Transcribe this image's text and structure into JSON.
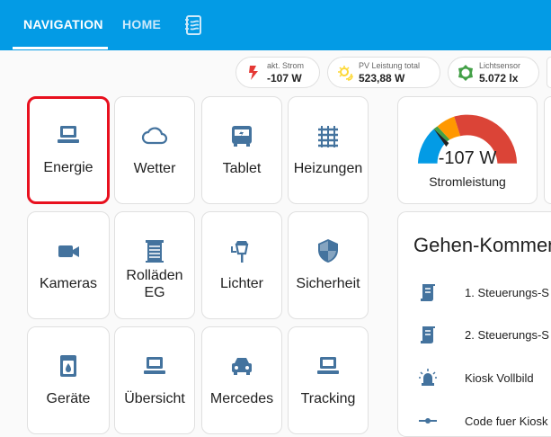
{
  "header": {
    "tabs": [
      {
        "label": "NAVIGATION",
        "active": true
      },
      {
        "label": "HOME",
        "active": false
      }
    ],
    "extra_tab_icon": "notebook-icon",
    "color": "#039be5"
  },
  "chips": [
    {
      "label": "akt. Strom",
      "value": "-107 W",
      "icon": "flash-icon",
      "color": "#e53935"
    },
    {
      "label": "PV Leistung total",
      "value": "523,88 W",
      "icon": "solar-power-icon",
      "color": "#fdd835"
    },
    {
      "label": "Lichtsensor",
      "value": "5.072 lx",
      "icon": "brightness-icon",
      "color": "#43a047"
    }
  ],
  "buttons": [
    {
      "label": "Energie",
      "icon": "laptop-icon",
      "selected": true
    },
    {
      "label": "Wetter",
      "icon": "cloud-icon"
    },
    {
      "label": "Tablet",
      "icon": "tablet-bus-icon"
    },
    {
      "label": "Heizungen",
      "icon": "radiator-icon"
    },
    {
      "label": "Kameras",
      "icon": "video-camera-icon"
    },
    {
      "label": "Rolläden EG",
      "icon": "window-shutter-icon"
    },
    {
      "label": "Lichter",
      "icon": "outdoor-lamp-icon"
    },
    {
      "label": "Sicherheit",
      "icon": "shield-icon"
    },
    {
      "label": "Geräte",
      "icon": "washing-machine-icon"
    },
    {
      "label": "Übersicht",
      "icon": "laptop-icon"
    },
    {
      "label": "Mercedes",
      "icon": "car-icon"
    },
    {
      "label": "Tracking",
      "icon": "laptop-icon"
    }
  ],
  "gauge": {
    "value": "-107 W",
    "name": "Stromleistung",
    "needle_fraction": 0.2,
    "colors": [
      "#039be5",
      "#43a047",
      "#ff9800",
      "#db4437"
    ]
  },
  "entities": {
    "title": "Gehen-Kommen",
    "items": [
      {
        "label": "1. Steuerungs-S",
        "icon": "script-icon"
      },
      {
        "label": "2. Steuerungs-S",
        "icon": "script-icon"
      },
      {
        "label": "Kiosk Vollbild",
        "icon": "alarm-light-icon"
      },
      {
        "label": "Code fuer Kiosk",
        "icon": "slider-icon"
      }
    ]
  },
  "icon_color": "#44739e"
}
